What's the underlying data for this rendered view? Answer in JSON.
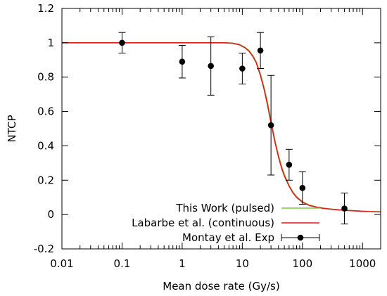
{
  "chart_data": {
    "type": "line",
    "xlabel": "Mean dose rate (Gy/s)",
    "ylabel": "NTCP",
    "xscale": "log",
    "xlim": [
      0.01,
      2000
    ],
    "ylim": [
      -0.2,
      1.2
    ],
    "x_ticks": [
      0.01,
      0.1,
      1,
      10,
      100,
      1000
    ],
    "x_tick_labels": [
      "0.01",
      "0.1",
      "1",
      "10",
      "100",
      "1000"
    ],
    "y_ticks": [
      -0.2,
      0,
      0.2,
      0.4,
      0.6,
      0.8,
      1,
      1.2
    ],
    "y_tick_labels": [
      "-0.2",
      "0",
      "0.2",
      "0.4",
      "0.6",
      "0.8",
      "1",
      "1.2"
    ],
    "grid": false,
    "legend_position": "bottom-right",
    "series": [
      {
        "name": "This Work (pulsed)",
        "kind": "line",
        "color": "#7ac943",
        "x": [
          0.01,
          1,
          5,
          7,
          9,
          11,
          13,
          15,
          17,
          20,
          23,
          26,
          30,
          35,
          40,
          45,
          50,
          60,
          70,
          80,
          100,
          130,
          170,
          220,
          300,
          400,
          500,
          700,
          1000,
          1400,
          2000
        ],
        "y": [
          1.0,
          1.0,
          1.0,
          0.998,
          0.99,
          0.975,
          0.955,
          0.925,
          0.89,
          0.82,
          0.74,
          0.66,
          0.55,
          0.43,
          0.345,
          0.28,
          0.235,
          0.17,
          0.13,
          0.105,
          0.075,
          0.055,
          0.045,
          0.038,
          0.032,
          0.028,
          0.026,
          0.023,
          0.02,
          0.018,
          0.016
        ]
      },
      {
        "name": "Labarbe et al. (continuous)",
        "kind": "line",
        "color": "#e41a1c",
        "x": [
          0.01,
          1,
          5,
          7,
          9,
          11,
          13,
          15,
          17,
          20,
          23,
          26,
          30,
          35,
          40,
          45,
          50,
          60,
          70,
          80,
          100,
          130,
          170,
          220,
          300,
          400,
          500,
          700,
          1000,
          1400,
          2000
        ],
        "y": [
          1.0,
          1.0,
          1.0,
          0.997,
          0.988,
          0.972,
          0.95,
          0.92,
          0.885,
          0.81,
          0.73,
          0.645,
          0.535,
          0.42,
          0.335,
          0.27,
          0.225,
          0.165,
          0.125,
          0.1,
          0.072,
          0.053,
          0.043,
          0.036,
          0.031,
          0.027,
          0.025,
          0.022,
          0.019,
          0.017,
          0.015
        ]
      },
      {
        "name": "Montay et al. Exp",
        "kind": "points",
        "color": "#000000",
        "x": [
          0.1,
          1,
          3,
          10,
          20,
          30,
          60,
          100,
          500
        ],
        "y": [
          1.0,
          0.89,
          0.865,
          0.85,
          0.955,
          0.52,
          0.29,
          0.155,
          0.035
        ],
        "err": [
          0.06,
          0.095,
          0.17,
          0.09,
          0.105,
          0.29,
          0.09,
          0.095,
          0.09
        ]
      }
    ]
  }
}
